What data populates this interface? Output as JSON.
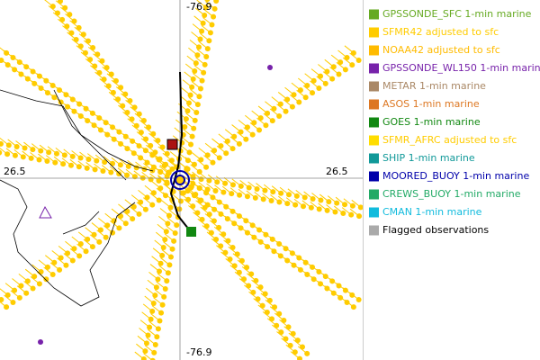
{
  "map": {
    "axis_labels": {
      "top": "-76.9",
      "bottom": "-76.9",
      "left": "26.5",
      "right": "26.5"
    },
    "legend": [
      {
        "label": "GPSSONDE_SFC 1-min marine",
        "color": "#66aa22",
        "text_color": "#66aa22"
      },
      {
        "label": "SFMR42 adjusted to sfc",
        "color": "#ffcc00",
        "text_color": "#ffcc00"
      },
      {
        "label": "NOAA42 adjusted to sfc",
        "color": "#ffbb00",
        "text_color": "#ffbb00"
      },
      {
        "label": "GPSSONDE_WL150 1-min marine",
        "color": "#7722aa",
        "text_color": "#7722aa"
      },
      {
        "label": "METAR 1-min marine",
        "color": "#aa8866",
        "text_color": "#aa8866"
      },
      {
        "label": "ASOS 1-min marine",
        "color": "#dd7722",
        "text_color": "#dd7722"
      },
      {
        "label": "GOES 1-min marine",
        "color": "#118811",
        "text_color": "#118811"
      },
      {
        "label": "SFMR_AFRC adjusted to sfc",
        "color": "#ffdd00",
        "text_color": "#ffcc00"
      },
      {
        "label": "SHIP 1-min marine",
        "color": "#119999",
        "text_color": "#119999"
      },
      {
        "label": "MOORED_BUOY 1-min marine",
        "color": "#0000aa",
        "text_color": "#0000aa"
      },
      {
        "label": "CREWS_BUOY 1-min marine",
        "color": "#22aa66",
        "text_color": "#22aa66"
      },
      {
        "label": "CMAN 1-min marine",
        "color": "#11bbdd",
        "text_color": "#11bbdd"
      },
      {
        "label": "Flagged observations",
        "color": "#aaaaaa",
        "text_color": "#000000"
      }
    ]
  }
}
